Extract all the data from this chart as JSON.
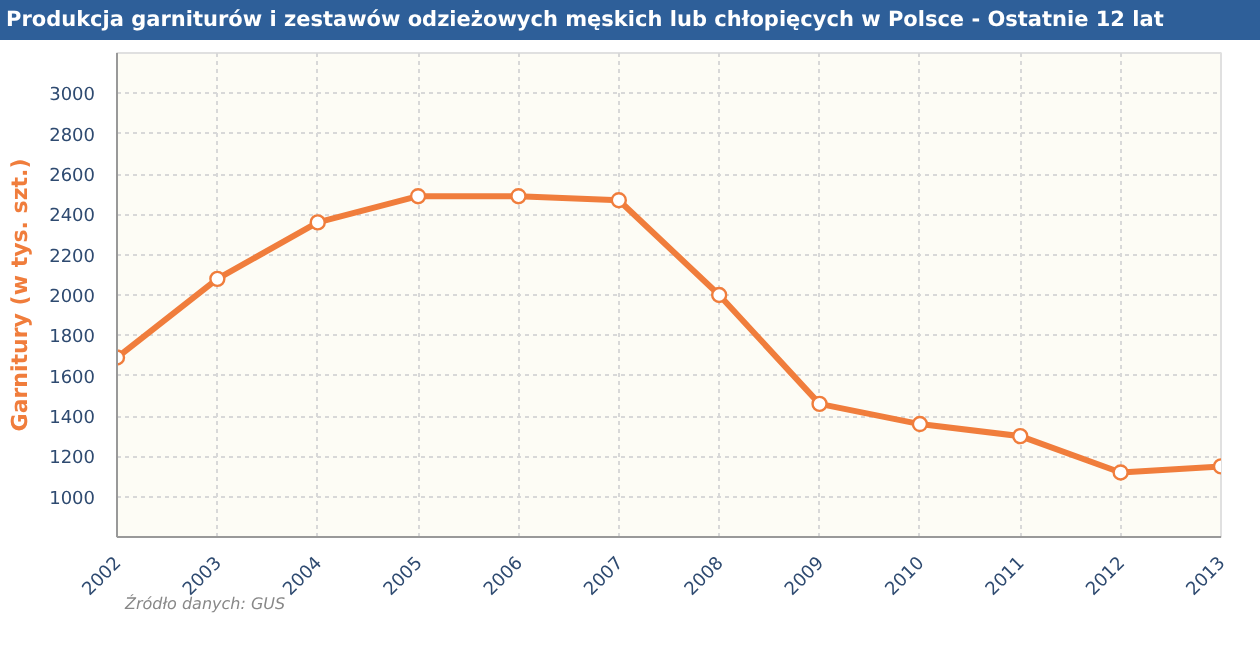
{
  "chart_data": {
    "type": "line",
    "title": "Produkcja garniturów i zestawów odzieżowych męskich lub chłopięcych w Polsce - Ostatnie 12 lat",
    "ylabel": "Garnitury (w tys. szt.)",
    "x": [
      2002,
      2003,
      2004,
      2005,
      2006,
      2007,
      2008,
      2009,
      2010,
      2011,
      2012,
      2013
    ],
    "series": [
      {
        "color": "#f07d3c",
        "values": [
          1690,
          2080,
          2360,
          2490,
          2490,
          2470,
          2000,
          1460,
          1360,
          1300,
          1120,
          1150
        ]
      }
    ],
    "xlim": [
      2002,
      2013
    ],
    "xticks": [
      2002,
      2003,
      2004,
      2005,
      2006,
      2007,
      2008,
      2009,
      2010,
      2011,
      2012,
      2013
    ],
    "ylim": [
      800,
      3200
    ],
    "yticks": [
      1000,
      1200,
      1400,
      1600,
      1800,
      2000,
      2200,
      2400,
      2600,
      2800,
      3000
    ],
    "grid": true,
    "marker": "circle",
    "line_style": "solid",
    "annotations": [
      "Źródło danych: GUS"
    ]
  }
}
